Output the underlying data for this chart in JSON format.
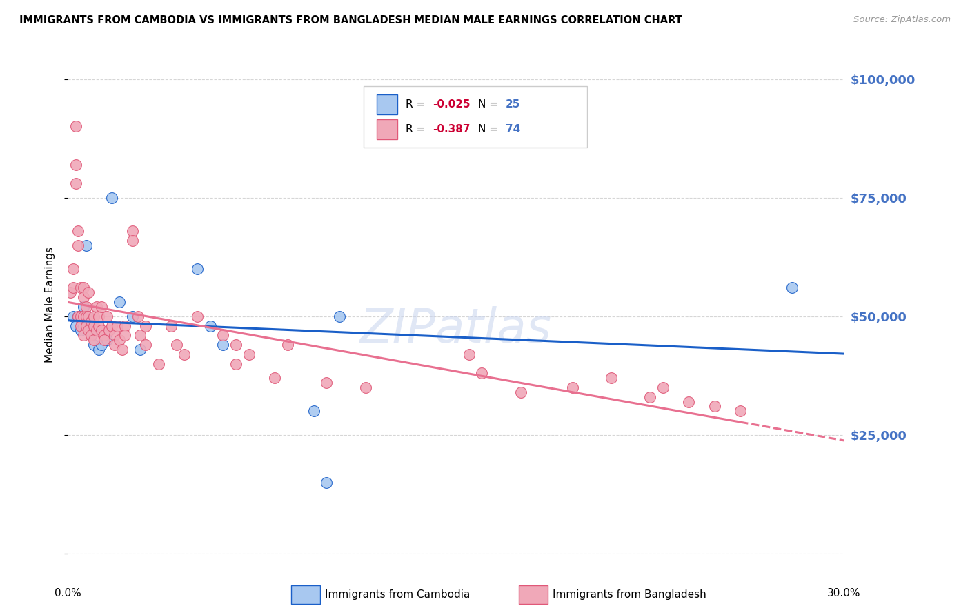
{
  "title": "IMMIGRANTS FROM CAMBODIA VS IMMIGRANTS FROM BANGLADESH MEDIAN MALE EARNINGS CORRELATION CHART",
  "source": "Source: ZipAtlas.com",
  "ylabel": "Median Male Earnings",
  "ytick_values": [
    0,
    25000,
    50000,
    75000,
    100000
  ],
  "ytick_labels": [
    "",
    "$25,000",
    "$50,000",
    "$75,000",
    "$100,000"
  ],
  "R_cambodia": -0.025,
  "N_cambodia": 25,
  "R_bangladesh": -0.387,
  "N_bangladesh": 74,
  "color_cambodia": "#a8c8f0",
  "color_bangladesh": "#f0a8b8",
  "edge_cambodia": "#1a5fc8",
  "edge_bangladesh": "#e05878",
  "line_color_cambodia": "#1a5fc8",
  "line_color_bangladesh": "#e87090",
  "background_color": "#ffffff",
  "scatter_cambodia_x": [
    0.002,
    0.003,
    0.004,
    0.005,
    0.005,
    0.006,
    0.006,
    0.007,
    0.008,
    0.009,
    0.01,
    0.012,
    0.013,
    0.015,
    0.017,
    0.02,
    0.025,
    0.028,
    0.05,
    0.055,
    0.06,
    0.095,
    0.1,
    0.105,
    0.28
  ],
  "scatter_cambodia_y": [
    50000,
    48000,
    50000,
    50000,
    47000,
    52000,
    48000,
    65000,
    50000,
    46000,
    44000,
    43000,
    44000,
    45000,
    75000,
    53000,
    50000,
    43000,
    60000,
    48000,
    44000,
    30000,
    15000,
    50000,
    56000
  ],
  "scatter_bangladesh_x": [
    0.001,
    0.002,
    0.002,
    0.003,
    0.003,
    0.003,
    0.004,
    0.004,
    0.004,
    0.005,
    0.005,
    0.005,
    0.006,
    0.006,
    0.006,
    0.006,
    0.007,
    0.007,
    0.007,
    0.008,
    0.008,
    0.008,
    0.009,
    0.009,
    0.01,
    0.01,
    0.01,
    0.011,
    0.011,
    0.012,
    0.012,
    0.013,
    0.013,
    0.014,
    0.014,
    0.015,
    0.016,
    0.017,
    0.018,
    0.018,
    0.019,
    0.02,
    0.021,
    0.022,
    0.022,
    0.025,
    0.025,
    0.027,
    0.028,
    0.03,
    0.03,
    0.035,
    0.04,
    0.042,
    0.045,
    0.05,
    0.06,
    0.065,
    0.065,
    0.07,
    0.08,
    0.085,
    0.1,
    0.115,
    0.155,
    0.16,
    0.175,
    0.195,
    0.21,
    0.225,
    0.23,
    0.24,
    0.25,
    0.26
  ],
  "scatter_bangladesh_y": [
    55000,
    60000,
    56000,
    90000,
    82000,
    78000,
    68000,
    65000,
    50000,
    56000,
    50000,
    48000,
    56000,
    54000,
    50000,
    46000,
    52000,
    50000,
    48000,
    55000,
    50000,
    47000,
    49000,
    46000,
    50000,
    48000,
    45000,
    52000,
    47000,
    50000,
    48000,
    52000,
    47000,
    46000,
    45000,
    50000,
    47000,
    48000,
    46000,
    44000,
    48000,
    45000,
    43000,
    48000,
    46000,
    68000,
    66000,
    50000,
    46000,
    48000,
    44000,
    40000,
    48000,
    44000,
    42000,
    50000,
    46000,
    44000,
    40000,
    42000,
    37000,
    44000,
    36000,
    35000,
    42000,
    38000,
    34000,
    35000,
    37000,
    33000,
    35000,
    32000,
    31000,
    30000
  ]
}
